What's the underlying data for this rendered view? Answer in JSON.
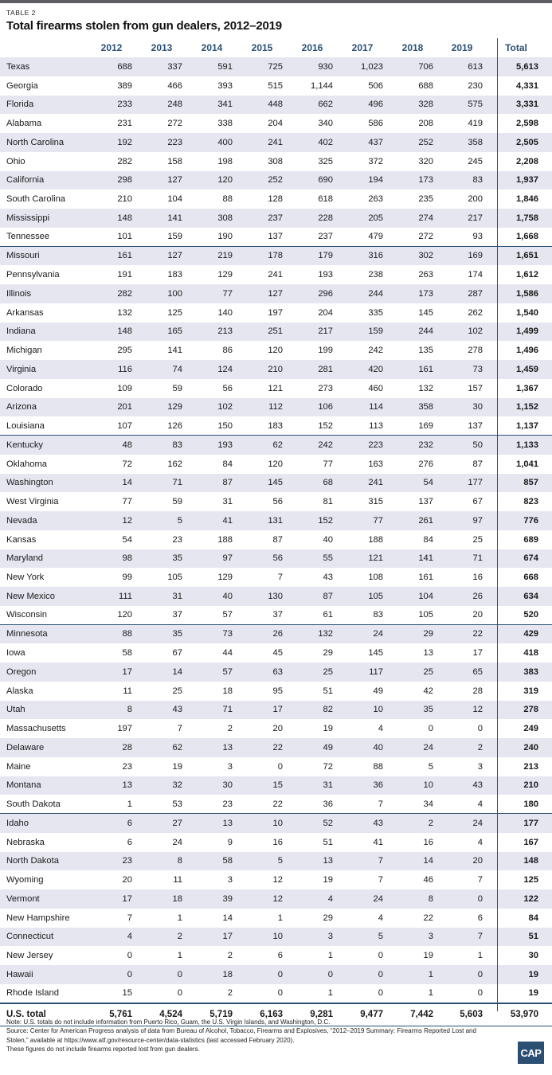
{
  "table_label": "TABLE 2",
  "title": "Total firearms stolen from gun dealers,  2012–2019",
  "columns": [
    "2012",
    "2013",
    "2014",
    "2015",
    "2016",
    "2017",
    "2018",
    "2019",
    "Total"
  ],
  "rows": [
    {
      "state": "Texas",
      "values": [
        "688",
        "337",
        "591",
        "725",
        "930",
        "1,023",
        "706",
        "613"
      ],
      "total": "5,613"
    },
    {
      "state": "Georgia",
      "values": [
        "389",
        "466",
        "393",
        "515",
        "1,144",
        "506",
        "688",
        "230"
      ],
      "total": "4,331"
    },
    {
      "state": "Florida",
      "values": [
        "233",
        "248",
        "341",
        "448",
        "662",
        "496",
        "328",
        "575"
      ],
      "total": "3,331"
    },
    {
      "state": "Alabama",
      "values": [
        "231",
        "272",
        "338",
        "204",
        "340",
        "586",
        "208",
        "419"
      ],
      "total": "2,598"
    },
    {
      "state": "North Carolina",
      "values": [
        "192",
        "223",
        "400",
        "241",
        "402",
        "437",
        "252",
        "358"
      ],
      "total": "2,505"
    },
    {
      "state": "Ohio",
      "values": [
        "282",
        "158",
        "198",
        "308",
        "325",
        "372",
        "320",
        "245"
      ],
      "total": "2,208"
    },
    {
      "state": "California",
      "values": [
        "298",
        "127",
        "120",
        "252",
        "690",
        "194",
        "173",
        "83"
      ],
      "total": "1,937"
    },
    {
      "state": "South Carolina",
      "values": [
        "210",
        "104",
        "88",
        "128",
        "618",
        "263",
        "235",
        "200"
      ],
      "total": "1,846"
    },
    {
      "state": "Mississippi",
      "values": [
        "148",
        "141",
        "308",
        "237",
        "228",
        "205",
        "274",
        "217"
      ],
      "total": "1,758"
    },
    {
      "state": "Tennessee",
      "values": [
        "101",
        "159",
        "190",
        "137",
        "237",
        "479",
        "272",
        "93"
      ],
      "total": "1,668"
    },
    {
      "state": "Missouri",
      "values": [
        "161",
        "127",
        "219",
        "178",
        "179",
        "316",
        "302",
        "169"
      ],
      "total": "1,651"
    },
    {
      "state": "Pennsylvania",
      "values": [
        "191",
        "183",
        "129",
        "241",
        "193",
        "238",
        "263",
        "174"
      ],
      "total": "1,612"
    },
    {
      "state": "Illinois",
      "values": [
        "282",
        "100",
        "77",
        "127",
        "296",
        "244",
        "173",
        "287"
      ],
      "total": "1,586"
    },
    {
      "state": "Arkansas",
      "values": [
        "132",
        "125",
        "140",
        "197",
        "204",
        "335",
        "145",
        "262"
      ],
      "total": "1,540"
    },
    {
      "state": "Indiana",
      "values": [
        "148",
        "165",
        "213",
        "251",
        "217",
        "159",
        "244",
        "102"
      ],
      "total": "1,499"
    },
    {
      "state": "Michigan",
      "values": [
        "295",
        "141",
        "86",
        "120",
        "199",
        "242",
        "135",
        "278"
      ],
      "total": "1,496"
    },
    {
      "state": "Virginia",
      "values": [
        "116",
        "74",
        "124",
        "210",
        "281",
        "420",
        "161",
        "73"
      ],
      "total": "1,459"
    },
    {
      "state": "Colorado",
      "values": [
        "109",
        "59",
        "56",
        "121",
        "273",
        "460",
        "132",
        "157"
      ],
      "total": "1,367"
    },
    {
      "state": "Arizona",
      "values": [
        "201",
        "129",
        "102",
        "112",
        "106",
        "114",
        "358",
        "30"
      ],
      "total": "1,152"
    },
    {
      "state": "Louisiana",
      "values": [
        "107",
        "126",
        "150",
        "183",
        "152",
        "113",
        "169",
        "137"
      ],
      "total": "1,137"
    },
    {
      "state": "Kentucky",
      "values": [
        "48",
        "83",
        "193",
        "62",
        "242",
        "223",
        "232",
        "50"
      ],
      "total": "1,133"
    },
    {
      "state": "Oklahoma",
      "values": [
        "72",
        "162",
        "84",
        "120",
        "77",
        "163",
        "276",
        "87"
      ],
      "total": "1,041"
    },
    {
      "state": "Washington",
      "values": [
        "14",
        "71",
        "87",
        "145",
        "68",
        "241",
        "54",
        "177"
      ],
      "total": "857"
    },
    {
      "state": "West Virginia",
      "values": [
        "77",
        "59",
        "31",
        "56",
        "81",
        "315",
        "137",
        "67"
      ],
      "total": "823"
    },
    {
      "state": "Nevada",
      "values": [
        "12",
        "5",
        "41",
        "131",
        "152",
        "77",
        "261",
        "97"
      ],
      "total": "776"
    },
    {
      "state": "Kansas",
      "values": [
        "54",
        "23",
        "188",
        "87",
        "40",
        "188",
        "84",
        "25"
      ],
      "total": "689"
    },
    {
      "state": "Maryland",
      "values": [
        "98",
        "35",
        "97",
        "56",
        "55",
        "121",
        "141",
        "71"
      ],
      "total": "674"
    },
    {
      "state": "New York",
      "values": [
        "99",
        "105",
        "129",
        "7",
        "43",
        "108",
        "161",
        "16"
      ],
      "total": "668"
    },
    {
      "state": "New Mexico",
      "values": [
        "111",
        "31",
        "40",
        "130",
        "87",
        "105",
        "104",
        "26"
      ],
      "total": "634"
    },
    {
      "state": "Wisconsin",
      "values": [
        "120",
        "37",
        "57",
        "37",
        "61",
        "83",
        "105",
        "20"
      ],
      "total": "520"
    },
    {
      "state": "Minnesota",
      "values": [
        "88",
        "35",
        "73",
        "26",
        "132",
        "24",
        "29",
        "22"
      ],
      "total": "429"
    },
    {
      "state": "Iowa",
      "values": [
        "58",
        "67",
        "44",
        "45",
        "29",
        "145",
        "13",
        "17"
      ],
      "total": "418"
    },
    {
      "state": "Oregon",
      "values": [
        "17",
        "14",
        "57",
        "63",
        "25",
        "117",
        "25",
        "65"
      ],
      "total": "383"
    },
    {
      "state": "Alaska",
      "values": [
        "11",
        "25",
        "18",
        "95",
        "51",
        "49",
        "42",
        "28"
      ],
      "total": "319"
    },
    {
      "state": "Utah",
      "values": [
        "8",
        "43",
        "71",
        "17",
        "82",
        "10",
        "35",
        "12"
      ],
      "total": "278"
    },
    {
      "state": "Massachusetts",
      "values": [
        "197",
        "7",
        "2",
        "20",
        "19",
        "4",
        "0",
        "0"
      ],
      "total": "249"
    },
    {
      "state": "Delaware",
      "values": [
        "28",
        "62",
        "13",
        "22",
        "49",
        "40",
        "24",
        "2"
      ],
      "total": "240"
    },
    {
      "state": "Maine",
      "values": [
        "23",
        "19",
        "3",
        "0",
        "72",
        "88",
        "5",
        "3"
      ],
      "total": "213"
    },
    {
      "state": "Montana",
      "values": [
        "13",
        "32",
        "30",
        "15",
        "31",
        "36",
        "10",
        "43"
      ],
      "total": "210"
    },
    {
      "state": "South Dakota",
      "values": [
        "1",
        "53",
        "23",
        "22",
        "36",
        "7",
        "34",
        "4"
      ],
      "total": "180"
    },
    {
      "state": "Idaho",
      "values": [
        "6",
        "27",
        "13",
        "10",
        "52",
        "43",
        "2",
        "24"
      ],
      "total": "177"
    },
    {
      "state": "Nebraska",
      "values": [
        "6",
        "24",
        "9",
        "16",
        "51",
        "41",
        "16",
        "4"
      ],
      "total": "167"
    },
    {
      "state": "North Dakota",
      "values": [
        "23",
        "8",
        "58",
        "5",
        "13",
        "7",
        "14",
        "20"
      ],
      "total": "148"
    },
    {
      "state": "Wyoming",
      "values": [
        "20",
        "11",
        "3",
        "12",
        "19",
        "7",
        "46",
        "7"
      ],
      "total": "125"
    },
    {
      "state": "Vermont",
      "values": [
        "17",
        "18",
        "39",
        "12",
        "4",
        "24",
        "8",
        "0"
      ],
      "total": "122"
    },
    {
      "state": "New Hampshire",
      "values": [
        "7",
        "1",
        "14",
        "1",
        "29",
        "4",
        "22",
        "6"
      ],
      "total": "84"
    },
    {
      "state": "Connecticut",
      "values": [
        "4",
        "2",
        "17",
        "10",
        "3",
        "5",
        "3",
        "7"
      ],
      "total": "51"
    },
    {
      "state": "New Jersey",
      "values": [
        "0",
        "1",
        "2",
        "6",
        "1",
        "0",
        "19",
        "1"
      ],
      "total": "30"
    },
    {
      "state": "Hawaii",
      "values": [
        "0",
        "0",
        "18",
        "0",
        "0",
        "0",
        "1",
        "0"
      ],
      "total": "19"
    },
    {
      "state": "Rhode Island",
      "values": [
        "15",
        "0",
        "2",
        "0",
        "1",
        "0",
        "1",
        "0"
      ],
      "total": "19"
    }
  ],
  "us_total": {
    "label": "U.S. total",
    "values": [
      "5,761",
      "4,524",
      "5,719",
      "6,163",
      "9,281",
      "9,477",
      "7,442",
      "5,603"
    ],
    "total": "53,970"
  },
  "notes": {
    "note": "Note: U.S. totals do not include information from Puerto Rico, Guam, the U.S. Virgin Islands, and Washington, D.C.",
    "source": "Source: Center for American Progress analysis of data from Bureau of Alcohol, Tobacco, Firearms and Explosives, “2012–2019 Summary: Firearms Reported Lost and Stolen,” available at https://www.atf.gov/resource-center/data-statistics (last accessed February 2020).",
    "extra": "These figures do not include firearms reported lost from gun dealers."
  },
  "logo_text": "CAP",
  "colors": {
    "accent": "#2a4f73",
    "row_shade": "#e6e6f1",
    "top_bar": "#5d5d63"
  }
}
